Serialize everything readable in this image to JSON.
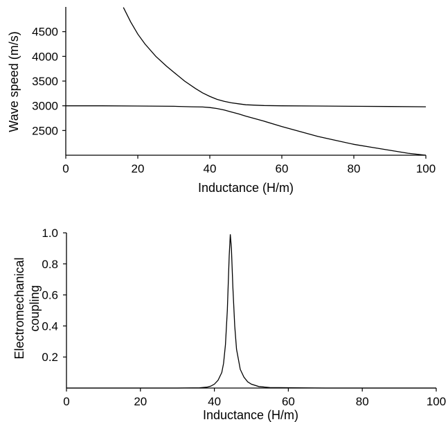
{
  "chart_data": [
    {
      "type": "line",
      "xlabel": "Inductance (H/m)",
      "ylabel": "Wave speed (m/s)",
      "xlim": [
        0,
        100
      ],
      "ylim": [
        2000,
        5000
      ],
      "x_ticks": [
        0,
        20,
        40,
        60,
        80,
        100
      ],
      "x_tick_labels": [
        "0",
        "20",
        "40",
        "60",
        "80",
        "100"
      ],
      "y_ticks": [
        2500,
        3000,
        3500,
        4000,
        4500
      ],
      "y_tick_labels": [
        "2500",
        "3000",
        "3500",
        "4000",
        "4500"
      ],
      "grid": false,
      "legend": "none",
      "series": [
        {
          "x": [
            16,
            18,
            20,
            22,
            25,
            28,
            30,
            33,
            36,
            38,
            40,
            42,
            44,
            46,
            48,
            50,
            55,
            60,
            70,
            80,
            90,
            100
          ],
          "values": [
            4990,
            4700,
            4450,
            4250,
            4000,
            3800,
            3680,
            3500,
            3350,
            3260,
            3190,
            3130,
            3090,
            3060,
            3040,
            3020,
            3005,
            3000,
            2995,
            2990,
            2985,
            2980
          ]
        },
        {
          "x": [
            0,
            10,
            20,
            30,
            35,
            38,
            40,
            42,
            44,
            46,
            48,
            50,
            55,
            60,
            65,
            70,
            75,
            80,
            85,
            90,
            95,
            100
          ],
          "values": [
            3000,
            3000,
            2995,
            2990,
            2980,
            2975,
            2965,
            2945,
            2915,
            2875,
            2835,
            2790,
            2690,
            2580,
            2480,
            2380,
            2300,
            2220,
            2160,
            2100,
            2040,
            2000
          ]
        }
      ]
    },
    {
      "type": "line",
      "xlabel": "Inductance (H/m)",
      "ylabel": "Electromechanical coupling",
      "xlim": [
        0,
        100
      ],
      "ylim": [
        0,
        1
      ],
      "x_ticks": [
        0,
        20,
        40,
        60,
        80,
        100
      ],
      "x_tick_labels": [
        "0",
        "20",
        "40",
        "60",
        "80",
        "100"
      ],
      "y_ticks": [
        0.2,
        0.4,
        0.6,
        0.8,
        1.0
      ],
      "y_tick_labels": [
        "0.2",
        "0.4",
        "0.6",
        "0.8",
        "1.0"
      ],
      "grid": false,
      "legend": "none",
      "series": [
        {
          "x": [
            0,
            30,
            36,
            38,
            39,
            40,
            41,
            42,
            42.5,
            43,
            43.5,
            44,
            44.3,
            44.6,
            45,
            45.5,
            46,
            47,
            48,
            49,
            50,
            52,
            55,
            70,
            100
          ],
          "values": [
            0,
            0,
            0.002,
            0.006,
            0.012,
            0.025,
            0.05,
            0.1,
            0.16,
            0.28,
            0.5,
            0.85,
            0.99,
            0.9,
            0.65,
            0.4,
            0.25,
            0.12,
            0.07,
            0.04,
            0.025,
            0.01,
            0.003,
            0,
            0
          ]
        }
      ]
    }
  ]
}
